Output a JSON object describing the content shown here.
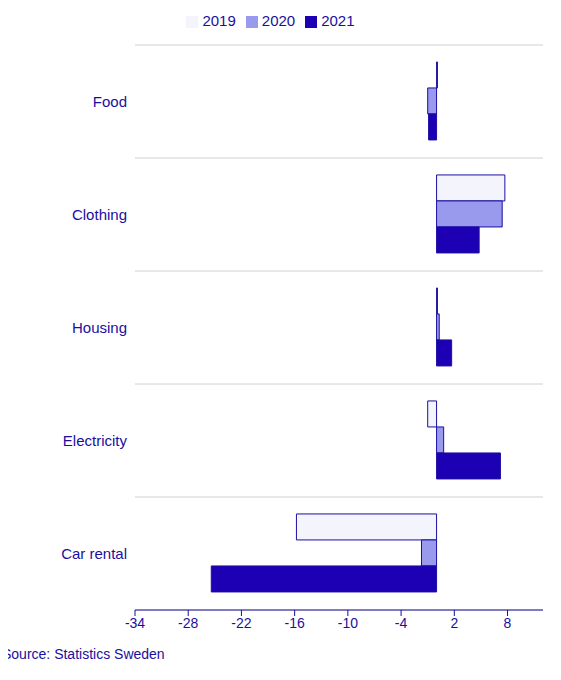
{
  "chart_data": {
    "type": "bar",
    "orientation": "horizontal",
    "categories": [
      "Food",
      "Clothing",
      "Housing",
      "Electricity",
      "Car rental"
    ],
    "series": [
      {
        "name": "2019",
        "color": "#f4f4fc",
        "values": [
          0.1,
          7.7,
          0.1,
          -1.0,
          -15.8
        ]
      },
      {
        "name": "2020",
        "color": "#9999ee",
        "values": [
          -1.0,
          7.4,
          0.3,
          0.8,
          -1.7
        ]
      },
      {
        "name": "2021",
        "color": "#1e00b4",
        "values": [
          -0.9,
          4.8,
          1.7,
          7.2,
          -25.4
        ]
      }
    ],
    "xlim": [
      -34,
      12
    ],
    "xticks": [
      -34,
      -28,
      -22,
      -16,
      -10,
      -4,
      2,
      8
    ],
    "grid": true,
    "legend": "top",
    "source": "Source: Statistics Sweden"
  }
}
